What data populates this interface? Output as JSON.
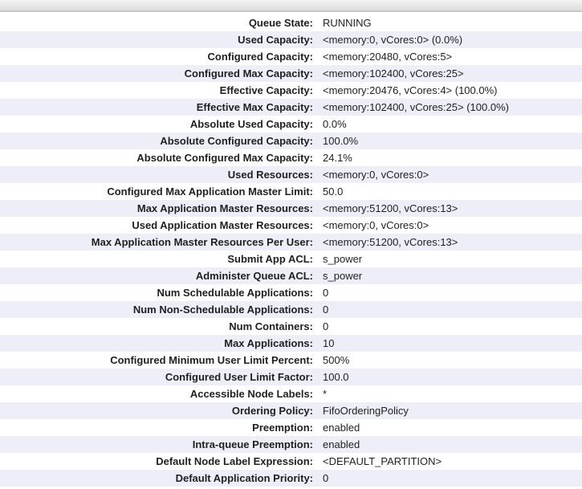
{
  "queue_info": {
    "rows": [
      {
        "label": "Queue State:",
        "value": "RUNNING"
      },
      {
        "label": "Used Capacity:",
        "value": "<memory:0, vCores:0> (0.0%)"
      },
      {
        "label": "Configured Capacity:",
        "value": "<memory:20480, vCores:5>"
      },
      {
        "label": "Configured Max Capacity:",
        "value": "<memory:102400, vCores:25>"
      },
      {
        "label": "Effective Capacity:",
        "value": "<memory:20476, vCores:4> (100.0%)"
      },
      {
        "label": "Effective Max Capacity:",
        "value": "<memory:102400, vCores:25> (100.0%)"
      },
      {
        "label": "Absolute Used Capacity:",
        "value": "0.0%"
      },
      {
        "label": "Absolute Configured Capacity:",
        "value": "100.0%"
      },
      {
        "label": "Absolute Configured Max Capacity:",
        "value": "24.1%"
      },
      {
        "label": "Used Resources:",
        "value": "<memory:0, vCores:0>"
      },
      {
        "label": "Configured Max Application Master Limit:",
        "value": "50.0"
      },
      {
        "label": "Max Application Master Resources:",
        "value": "<memory:51200, vCores:13>"
      },
      {
        "label": "Used Application Master Resources:",
        "value": "<memory:0, vCores:0>"
      },
      {
        "label": "Max Application Master Resources Per User:",
        "value": "<memory:51200, vCores:13>"
      },
      {
        "label": "Submit App ACL:",
        "value": "s_power"
      },
      {
        "label": "Administer Queue ACL:",
        "value": "s_power"
      },
      {
        "label": "Num Schedulable Applications:",
        "value": "0"
      },
      {
        "label": "Num Non-Schedulable Applications:",
        "value": "0"
      },
      {
        "label": "Num Containers:",
        "value": "0"
      },
      {
        "label": "Max Applications:",
        "value": "10"
      },
      {
        "label": "Configured Minimum User Limit Percent:",
        "value": "500%"
      },
      {
        "label": "Configured User Limit Factor:",
        "value": "100.0"
      },
      {
        "label": "Accessible Node Labels:",
        "value": "*"
      },
      {
        "label": "Ordering Policy:",
        "value": "FifoOrderingPolicy"
      },
      {
        "label": "Preemption:",
        "value": "enabled"
      },
      {
        "label": "Intra-queue Preemption:",
        "value": "enabled"
      },
      {
        "label": "Default Node Label Expression:",
        "value": "<DEFAULT_PARTITION>"
      },
      {
        "label": "Default Application Priority:",
        "value": "0"
      }
    ],
    "colors": {
      "stripe_even": "#eeeef8",
      "stripe_odd": "#ffffff",
      "text": "#1f1f1f",
      "header_bar_border": "#c9c9c9"
    }
  }
}
